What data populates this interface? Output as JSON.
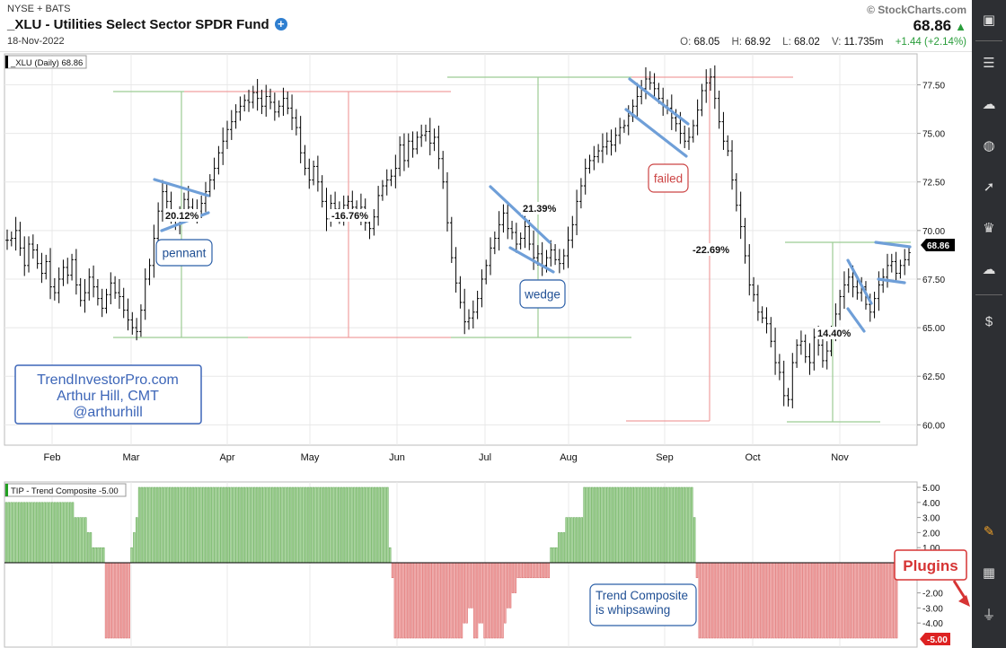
{
  "header": {
    "exchange": "NYSE + BATS",
    "title": "_XLU - Utilities Select Sector SPDR Fund",
    "date": "18-Nov-2022",
    "brand": "© StockCharts.com",
    "last": "68.86",
    "ohlc": {
      "o_label": "O:",
      "o": "68.05",
      "h_label": "H:",
      "h": "68.92",
      "l_label": "L:",
      "l": "68.02",
      "v_label": "V:",
      "v": "11.735m",
      "change": "+1.44 (+2.14%)"
    }
  },
  "colors": {
    "up_green": "#2a9d3b",
    "grid": "#e8e8e8",
    "annot_blue": "#6f9fd8",
    "green_line": "#9ccc94",
    "red_line": "#f0a0a0",
    "bar_green": "#a6d59a",
    "bar_red": "#f2a8a8"
  },
  "sidebar_icons": [
    "monitor-icon",
    "sliders-icon",
    "cloud-chart-icon",
    "globe-icon",
    "rocket-icon",
    "trophy-icon",
    "cloud-icon",
    "document-dollar-icon",
    "pencil-icon",
    "qr-code-icon",
    "plug-icon"
  ],
  "chart_data": [
    {
      "type": "ohlc",
      "label": "_XLU (Daily) 68.86",
      "last_value": "68.86",
      "yticks": [
        "77.50",
        "75.00",
        "72.50",
        "70.00",
        "67.50",
        "65.00",
        "62.50",
        "60.00"
      ],
      "ylim": [
        59.5,
        78.6
      ],
      "months": [
        "Feb",
        "Mar",
        "Apr",
        "May",
        "Jun",
        "Jul",
        "Aug",
        "Sep",
        "Oct",
        "Nov"
      ],
      "price_path": [
        69.5,
        69.6,
        70,
        69.1,
        68.2,
        69.3,
        69,
        68.3,
        67.8,
        68.4,
        67.1,
        66.8,
        67.5,
        68.1,
        67.7,
        68.5,
        67.2,
        66.4,
        66.8,
        67.6,
        67.1,
        66.5,
        66,
        66.7,
        67.3,
        66.8,
        66.6,
        65.9,
        65.4,
        65,
        64.8,
        65.9,
        67.5,
        68.2,
        69.6,
        71,
        72,
        71.5,
        70.8,
        70.3,
        70.7,
        71.6,
        71.2,
        70.9,
        71,
        71.4,
        72,
        72.6,
        73.2,
        74,
        74.6,
        75.2,
        75.6,
        76.1,
        76.4,
        76.7,
        76.6,
        77.1,
        76.8,
        76.4,
        76.9,
        76.6,
        76.1,
        76.4,
        76.8,
        76.3,
        75.8,
        75.3,
        74,
        73.2,
        72.6,
        73.3,
        72.5,
        71.5,
        70.6,
        71.4,
        71.1,
        70.7,
        71.3,
        71.5,
        71.2,
        70.9,
        71.2,
        70.4,
        70.1,
        70.7,
        71.8,
        72.3,
        72.6,
        72.8,
        73.2,
        74.4,
        73.6,
        74.6,
        74.2,
        74.8,
        74.9,
        75.1,
        74.5,
        74.8,
        73.7,
        72.5,
        70.4,
        68.6,
        67.3,
        66.3,
        65.3,
        65.5,
        65.8,
        66.5,
        67.5,
        68.2,
        69.1,
        69.6,
        70.3,
        70.9,
        70.1,
        69.9,
        69.3,
        69.6,
        70.2,
        69.3,
        68.6,
        68.8,
        68.2,
        68.6,
        69,
        68.5,
        68.3,
        68.7,
        69.5,
        70.3,
        71.5,
        72.3,
        73.2,
        73.6,
        73.8,
        74.1,
        74.3,
        74.6,
        74.4,
        74.9,
        75.3,
        75.4,
        75.9,
        76.4,
        76.9,
        77.3,
        77.8,
        77.6,
        77.3,
        76.8,
        76.4,
        76.3,
        75.8,
        75.5,
        75,
        74.6,
        74.8,
        75.4,
        76.2,
        77.2,
        77.6,
        77.9,
        76.8,
        75.6,
        74.6,
        74.1,
        72.6,
        71.3,
        70.2,
        68.7,
        67.2,
        66.7,
        65.8,
        65.5,
        65.2,
        64.3,
        63.2,
        62.7,
        61.5,
        61.3,
        63.2,
        64.1,
        64.3,
        63.5,
        63.2,
        64.5,
        64.1,
        63.3,
        63.8,
        64.8,
        65.7,
        66.6,
        67.2,
        67.6,
        67.1,
        66.8,
        67.1,
        66.2,
        65.8,
        66.5,
        67.2,
        67.6,
        68.2,
        68.4,
        67.8,
        68.2,
        68.5,
        68.86
      ],
      "annotations": [
        "20.12%",
        "-16.76%",
        "21.39%",
        "-22.69%",
        "14.40%",
        "pennant",
        "wedge",
        "failed"
      ],
      "watermark": [
        "TrendInvestorPro.com",
        "Arthur Hill, CMT",
        "@arthurhill"
      ]
    },
    {
      "type": "bar",
      "label": "TIP - Trend Composite -5.00",
      "last_value": "-5.00",
      "yticks": [
        "5.00",
        "4.00",
        "3.00",
        "2.00",
        "1.00",
        "-2.00",
        "-3.00",
        "-4.00"
      ],
      "ylim": [
        -5,
        5
      ],
      "values": [
        4,
        4,
        4,
        4,
        4,
        4,
        4,
        4,
        4,
        4,
        4,
        4,
        4,
        4,
        4,
        4,
        4,
        4,
        4,
        4,
        4,
        4,
        4,
        4,
        4,
        4,
        4,
        3,
        3,
        3,
        3,
        3,
        2,
        2,
        1,
        1,
        1,
        1,
        1,
        -5,
        -5,
        -5,
        -5,
        -5,
        -5,
        -5,
        -5,
        -5,
        -5,
        1,
        2,
        3,
        5,
        5,
        5,
        5,
        5,
        5,
        5,
        5,
        5,
        5,
        5,
        5,
        5,
        5,
        5,
        5,
        5,
        5,
        5,
        5,
        5,
        5,
        5,
        5,
        5,
        5,
        5,
        5,
        5,
        5,
        5,
        5,
        5,
        5,
        5,
        5,
        5,
        5,
        5,
        5,
        5,
        5,
        5,
        5,
        5,
        5,
        5,
        5,
        5,
        5,
        5,
        5,
        5,
        5,
        5,
        5,
        5,
        5,
        5,
        5,
        5,
        5,
        5,
        5,
        5,
        5,
        5,
        5,
        5,
        5,
        5,
        5,
        5,
        5,
        5,
        5,
        5,
        5,
        5,
        5,
        5,
        5,
        5,
        5,
        5,
        5,
        5,
        5,
        5,
        5,
        5,
        5,
        5,
        5,
        5,
        5,
        5,
        5,
        1,
        -1,
        -5,
        -5,
        -5,
        -5,
        -5,
        -5,
        -5,
        -5,
        -5,
        -5,
        -5,
        -5,
        -5,
        -5,
        -5,
        -5,
        -5,
        -5,
        -5,
        -5,
        -5,
        -5,
        -5,
        -5,
        -5,
        -5,
        -5,
        -4,
        -4,
        -3,
        -3,
        -5,
        -5,
        -4,
        -4,
        -5,
        -5,
        -5,
        -5,
        -5,
        -5,
        -5,
        -5,
        -4,
        -3,
        -3,
        -2,
        -2,
        -1,
        -1,
        -1,
        -1,
        -1,
        -1,
        -1,
        -1,
        -1,
        -1,
        -1,
        -1,
        -1,
        1,
        1,
        1,
        2,
        2,
        2,
        3,
        3,
        3,
        3,
        3,
        3,
        3,
        5,
        5,
        5,
        5,
        5,
        5,
        5,
        5,
        5,
        5,
        5,
        5,
        5,
        5,
        5,
        5,
        5,
        5,
        5,
        5,
        5,
        5,
        5,
        5,
        5,
        5,
        5,
        5,
        5,
        5,
        5,
        5,
        5,
        5,
        5,
        5,
        5,
        5,
        5,
        5,
        5,
        5,
        5,
        3,
        -1,
        -5,
        -5,
        -5,
        -5,
        -5,
        -5,
        -5,
        -5,
        -5,
        -5,
        -5,
        -5,
        -5,
        -5,
        -5,
        -5,
        -5,
        -5,
        -5,
        -5,
        -5,
        -5,
        -5,
        -5,
        -5,
        -5,
        -5,
        -5,
        -5,
        -5,
        -5,
        -5,
        -5,
        -5,
        -5,
        -5,
        -5,
        -5,
        -5,
        -5,
        -5,
        -5,
        -5,
        -5,
        -5,
        -5,
        -5,
        -5,
        -5,
        -5,
        -5,
        -5,
        -5,
        -5,
        -5,
        -5,
        -5,
        -5,
        -5,
        -5,
        -5,
        -5,
        -5,
        -5,
        -5,
        -5,
        -5,
        -5,
        -5,
        -5,
        -5,
        -5,
        -5,
        -5,
        -5,
        -5,
        -5,
        -5
      ],
      "annotations": [
        "Trend Composite",
        "is whipsawing"
      ]
    }
  ],
  "callout": {
    "label": "Plugins"
  }
}
